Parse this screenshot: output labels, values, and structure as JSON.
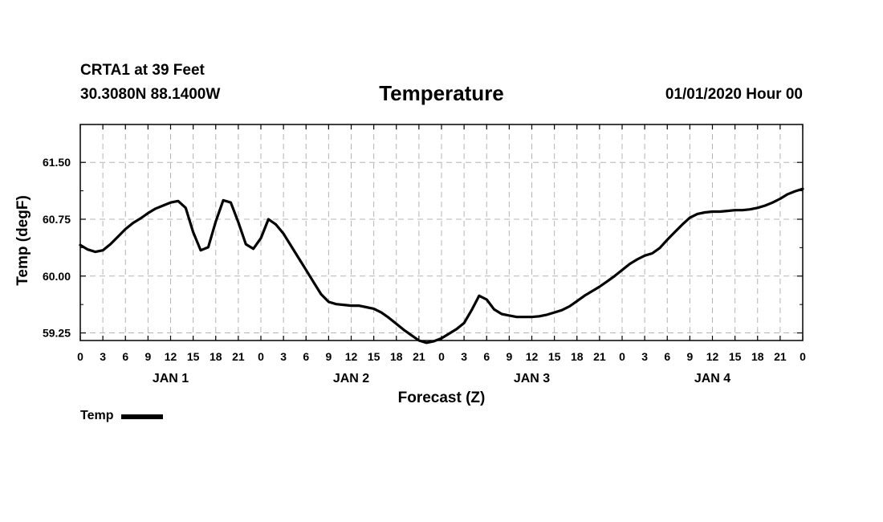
{
  "header": {
    "station": "CRTA1 at 39 Feet",
    "coords": "30.3080N 88.1400W",
    "title": "Temperature",
    "datetime": "01/01/2020 Hour 00"
  },
  "legend": {
    "label": "Temp"
  },
  "chart_data": {
    "type": "line",
    "title": "Temperature",
    "xlabel": "Forecast (Z)",
    "ylabel": "Temp (degF)",
    "xlim": [
      0,
      96
    ],
    "ylim": [
      59.15,
      62.0
    ],
    "yticks": [
      59.25,
      60.0,
      60.75,
      61.5
    ],
    "ytick_labels": [
      "59.25",
      "60.00",
      "60.75",
      "61.50"
    ],
    "xtick_hours": [
      0,
      3,
      6,
      9,
      12,
      15,
      18,
      21,
      24,
      27,
      30,
      33,
      36,
      39,
      42,
      45,
      48,
      51,
      54,
      57,
      60,
      63,
      66,
      69,
      72,
      75,
      78,
      81,
      84,
      87,
      90,
      93,
      96
    ],
    "xtick_labels": [
      "0",
      "3",
      "6",
      "9",
      "12",
      "15",
      "18",
      "21",
      "0",
      "3",
      "6",
      "9",
      "12",
      "15",
      "18",
      "21",
      "0",
      "3",
      "6",
      "9",
      "12",
      "15",
      "18",
      "21",
      "0",
      "3",
      "6",
      "9",
      "12",
      "15",
      "18",
      "21",
      "0"
    ],
    "days": [
      {
        "label": "JAN 1",
        "center_hour": 12
      },
      {
        "label": "JAN 2",
        "center_hour": 36
      },
      {
        "label": "JAN 3",
        "center_hour": 60
      },
      {
        "label": "JAN 4",
        "center_hour": 84
      }
    ],
    "grid": true,
    "legend_position": "bottom-left",
    "series": [
      {
        "name": "Temp",
        "color": "#000000",
        "x": [
          0,
          1,
          2,
          3,
          4,
          5,
          6,
          7,
          8,
          9,
          10,
          11,
          12,
          13,
          14,
          15,
          16,
          17,
          18,
          19,
          20,
          21,
          22,
          23,
          24,
          25,
          26,
          27,
          28,
          29,
          30,
          31,
          32,
          33,
          34,
          35,
          36,
          37,
          38,
          39,
          40,
          41,
          42,
          43,
          44,
          45,
          46,
          47,
          48,
          49,
          50,
          51,
          52,
          53,
          54,
          55,
          56,
          57,
          58,
          59,
          60,
          61,
          62,
          63,
          64,
          65,
          66,
          67,
          68,
          69,
          70,
          71,
          72,
          73,
          74,
          75,
          76,
          77,
          78,
          79,
          80,
          81,
          82,
          83,
          84,
          85,
          86,
          87,
          88,
          89,
          90,
          91,
          92,
          93,
          94,
          95,
          96
        ],
        "values": [
          60.41,
          60.35,
          60.32,
          60.34,
          60.42,
          60.52,
          60.62,
          60.7,
          60.76,
          60.83,
          60.89,
          60.93,
          60.97,
          60.99,
          60.9,
          60.58,
          60.34,
          60.38,
          60.72,
          61.0,
          60.97,
          60.71,
          60.42,
          60.36,
          60.5,
          60.75,
          60.68,
          60.56,
          60.4,
          60.24,
          60.08,
          59.92,
          59.76,
          59.66,
          59.63,
          59.62,
          59.61,
          59.61,
          59.59,
          59.57,
          59.52,
          59.45,
          59.37,
          59.29,
          59.22,
          59.15,
          59.12,
          59.14,
          59.18,
          59.24,
          59.3,
          59.38,
          59.55,
          59.74,
          59.69,
          59.56,
          59.5,
          59.48,
          59.46,
          59.46,
          59.46,
          59.47,
          59.49,
          59.52,
          59.55,
          59.6,
          59.67,
          59.74,
          59.8,
          59.86,
          59.93,
          60.0,
          60.08,
          60.16,
          60.22,
          60.27,
          60.3,
          60.37,
          60.48,
          60.58,
          60.68,
          60.77,
          60.82,
          60.84,
          60.85,
          60.85,
          60.86,
          60.87,
          60.87,
          60.88,
          60.9,
          60.93,
          60.97,
          61.02,
          61.08,
          61.12,
          61.15
        ]
      }
    ]
  }
}
